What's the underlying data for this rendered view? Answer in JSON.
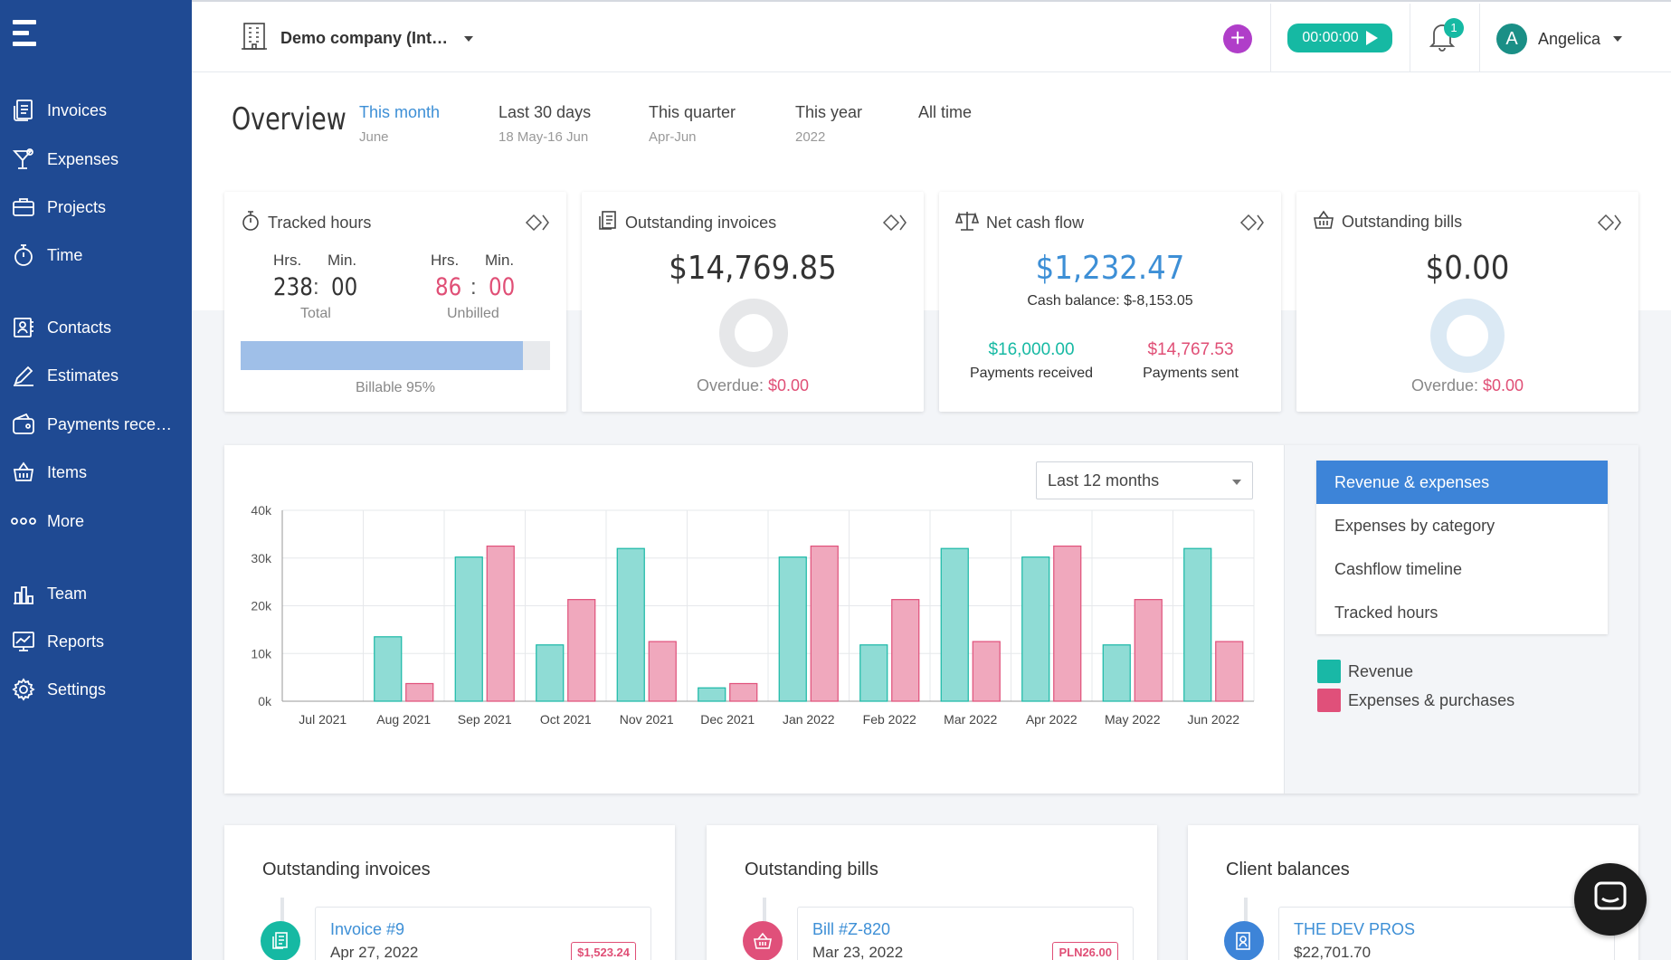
{
  "sidebar": {
    "items": [
      {
        "label": "Invoices",
        "icon": "invoice-icon"
      },
      {
        "label": "Expenses",
        "icon": "cocktail-icon"
      },
      {
        "label": "Projects",
        "icon": "briefcase-icon"
      },
      {
        "label": "Time",
        "icon": "stopwatch-icon"
      },
      {
        "label": "Contacts",
        "icon": "contacts-icon"
      },
      {
        "label": "Estimates",
        "icon": "estimate-icon"
      },
      {
        "label": "Payments rece…",
        "icon": "wallet-icon"
      },
      {
        "label": "Items",
        "icon": "basket-icon"
      },
      {
        "label": "More",
        "icon": "more-dots-icon"
      },
      {
        "label": "Team",
        "icon": "team-icon"
      },
      {
        "label": "Reports",
        "icon": "reports-icon"
      },
      {
        "label": "Settings",
        "icon": "gear-icon"
      }
    ]
  },
  "header": {
    "company": "Demo company (Int…",
    "timer": "00:00:00",
    "notifications": "1",
    "user_initial": "A",
    "user_name": "Angelica"
  },
  "overview": {
    "title": "Overview",
    "periods": [
      {
        "label": "This month",
        "sub": "June"
      },
      {
        "label": "Last 30 days",
        "sub": "18 May-16 Jun"
      },
      {
        "label": "This quarter",
        "sub": "Apr-Jun"
      },
      {
        "label": "This year",
        "sub": "2022"
      },
      {
        "label": "All time",
        "sub": ""
      }
    ]
  },
  "cards": {
    "tracked": {
      "title": "Tracked hours",
      "hrs_label": "Hrs.",
      "min_label": "Min.",
      "total_hrs": "238",
      "total_min": "00",
      "total_label": "Total",
      "unbilled_hrs": "86",
      "unbilled_min": "00",
      "unbilled_label": "Unbilled",
      "billable_label": "Billable 95%",
      "billable_fraction": 0.95
    },
    "outstanding_invoices": {
      "title": "Outstanding invoices",
      "amount": "$14,769.85",
      "overdue_label": "Overdue:",
      "overdue_value": "$0.00"
    },
    "net_cash": {
      "title": "Net cash flow",
      "amount": "$1,232.47",
      "cash_balance": "Cash balance: $-8,153.05",
      "received_value": "$16,000.00",
      "received_label": "Payments received",
      "sent_value": "$14,767.53",
      "sent_label": "Payments sent"
    },
    "outstanding_bills": {
      "title": "Outstanding bills",
      "amount": "$0.00",
      "overdue_label": "Overdue:",
      "overdue_value": "$0.00"
    }
  },
  "chart_panel": {
    "range": "Last 12 months",
    "menu": [
      "Revenue & expenses",
      "Expenses by category",
      "Cashflow timeline",
      "Tracked hours"
    ],
    "legend": [
      {
        "label": "Revenue",
        "color": "#19b8a6"
      },
      {
        "label": "Expenses & purchases",
        "color": "#e0507a"
      }
    ]
  },
  "chart_data": {
    "type": "bar",
    "categories": [
      "Jul 2021",
      "Aug 2021",
      "Sep 2021",
      "Oct 2021",
      "Nov 2021",
      "Dec 2021",
      "Jan 2022",
      "Feb 2022",
      "Mar 2022",
      "Apr 2022",
      "May 2022",
      "Jun 2022"
    ],
    "series": [
      {
        "name": "Revenue",
        "values": [
          0,
          13500,
          30200,
          11800,
          32000,
          2800,
          30200,
          11800,
          32000,
          30200,
          11800,
          32000
        ]
      },
      {
        "name": "Expenses & purchases",
        "values": [
          0,
          3700,
          32500,
          21300,
          12500,
          3700,
          32500,
          21300,
          12500,
          32500,
          21300,
          12500
        ]
      }
    ],
    "yticks": [
      "0k",
      "10k",
      "20k",
      "30k",
      "40k"
    ],
    "ylim": [
      0,
      40000
    ],
    "grid": true
  },
  "bottom": {
    "invoices": {
      "title": "Outstanding invoices",
      "link": "Invoice #9",
      "date": "Apr 27, 2022",
      "badge": "$1,523.24"
    },
    "bills": {
      "title": "Outstanding bills",
      "link": "Bill #Z-820",
      "date": "Mar 23, 2022",
      "badge": "PLN26.00"
    },
    "clients": {
      "title": "Client balances",
      "link": "THE DEV PROS",
      "amount": "$22,701.70"
    }
  }
}
